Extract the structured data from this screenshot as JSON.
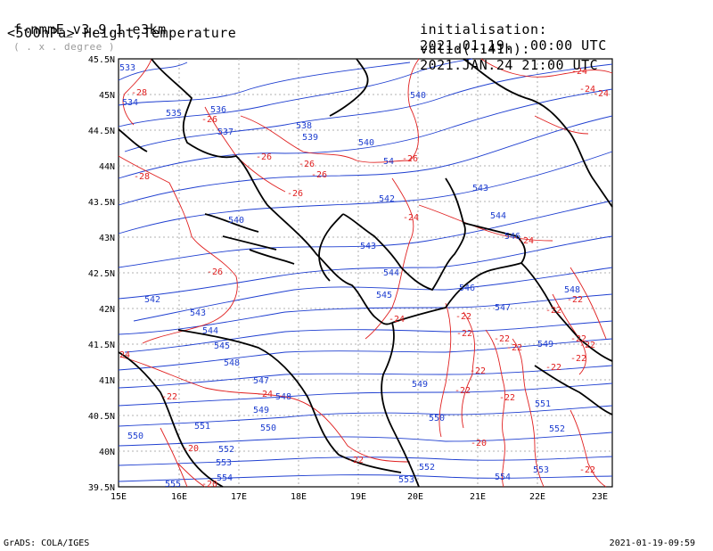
{
  "header": {
    "model_prefix": "f-nmmE_v3.9.1-e3km",
    "grid_note": "( . x . degree )",
    "field_line": "<500hPa> Height,Temperature",
    "init_label": "initialisation:",
    "init_value": "2021.01.19.  00:00 UTC",
    "valid_label": "valid(+141h):",
    "valid_value": "2021.JAN.24 21:00 UTC"
  },
  "axes": {
    "lon_labels": [
      "15E",
      "16E",
      "17E",
      "18E",
      "19E",
      "20E",
      "21E",
      "22E",
      "23E"
    ],
    "lat_labels": [
      "45.5N",
      "45N",
      "44.5N",
      "44N",
      "43.5N",
      "43N",
      "42.5N",
      "42N",
      "41.5N",
      "41N",
      "40.5N",
      "40N",
      "39.5N"
    ]
  },
  "contours": {
    "height_color": "#1f3fd0",
    "temp_color": "#e02020",
    "height_labels": [
      "533",
      "534",
      "535",
      "536",
      "537",
      "538",
      "539",
      "540",
      "540",
      "540",
      "54",
      "542",
      "542",
      "543",
      "543",
      "543",
      "544",
      "544",
      "544",
      "545",
      "545",
      "546",
      "546",
      "547",
      "547",
      "548",
      "548",
      "548",
      "549",
      "549",
      "549",
      "550",
      "550",
      "550",
      "551",
      "551",
      "552",
      "552",
      "552",
      "553",
      "553",
      "553",
      "554",
      "554",
      "555"
    ],
    "temp_labels": [
      "-24",
      "-24",
      "-24",
      "-28",
      "-28",
      "-26",
      "-26",
      "-26",
      "-26",
      "-26",
      "-26",
      "-26",
      "-24",
      "-24",
      "-24",
      "-24",
      "-22",
      "-22",
      "-22",
      "-22",
      "-22",
      "-22",
      "-22",
      "-22",
      "-22",
      "-22",
      "-22",
      "-22",
      "-22",
      "-22",
      "-22",
      "-20",
      "-20",
      "-20",
      "24",
      "-22"
    ]
  },
  "footer": {
    "left": "GrADS: COLA/IGES",
    "right": "2021-01-19-09:59"
  }
}
